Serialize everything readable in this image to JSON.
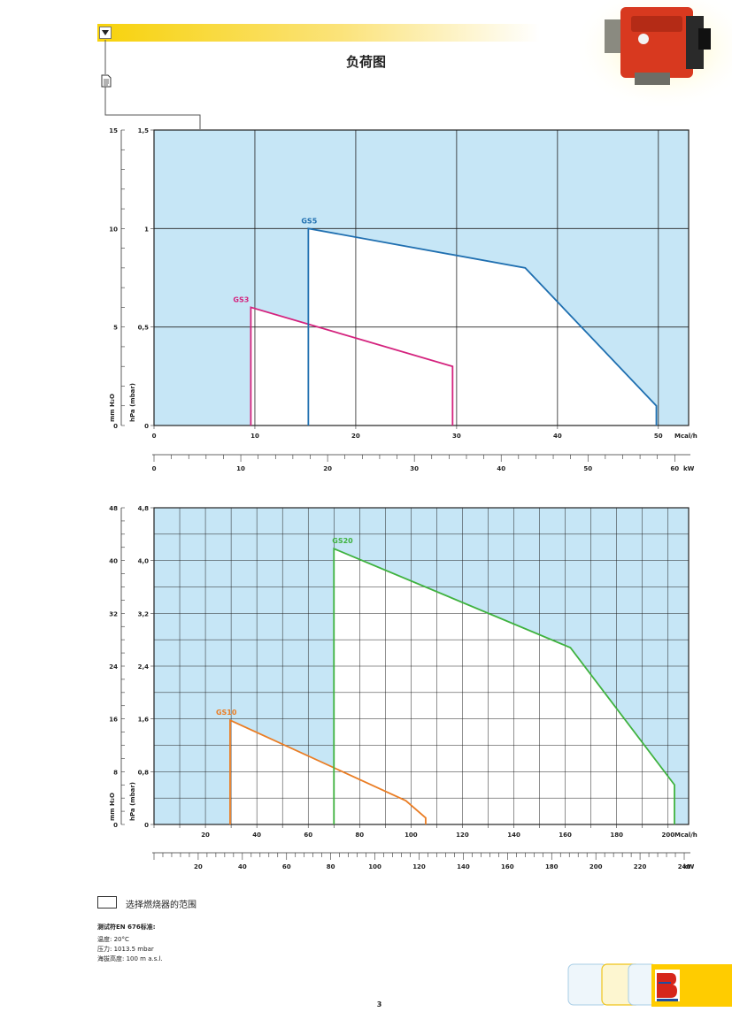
{
  "page": {
    "title": "负荷图",
    "page_number": "3",
    "legend_label": "选择燃烧器的范围",
    "notes_title": "测试符EN 676标准:",
    "notes": [
      "温度:  20°C",
      "压力:  1013.5 mbar",
      "海拔高度:  100 m a.s.l."
    ]
  },
  "colors": {
    "plot_background": "#c6e6f6",
    "gs3": "#d4237e",
    "gs5": "#1f6fb0",
    "gs10": "#ea7d24",
    "gs20": "#3fb23f",
    "banner": "#f7d20b"
  },
  "chart_data": [
    {
      "type": "line",
      "left_axis_label": "mm H₂O",
      "right_axis_label": "hPa (mbar)",
      "flow_unit": "Mcal/h",
      "power_unit": "kW",
      "mmH2O_ticks": [
        "15",
        "10",
        "5",
        "0"
      ],
      "mmH2O_ylim": [
        0,
        15
      ],
      "hPa_ticks": [
        "1,5",
        "1",
        "0,5",
        "0"
      ],
      "ylim": [
        0,
        1.5
      ],
      "x_ticks": [
        "0",
        "10",
        "20",
        "30",
        "40",
        "50"
      ],
      "xlim": [
        0,
        53
      ],
      "kW_ticks": [
        "0",
        "10",
        "20",
        "30",
        "40",
        "50",
        "60"
      ],
      "kW_xlim": [
        0,
        61.6
      ],
      "grid": true,
      "series": [
        {
          "name": "GS3",
          "color_key": "gs3",
          "x": [
            9.6,
            9.6,
            29.6,
            29.6
          ],
          "y": [
            0,
            0.6,
            0.3,
            0
          ]
        },
        {
          "name": "GS5",
          "color_key": "gs5",
          "x": [
            15.3,
            15.3,
            36.8,
            49.8,
            49.8
          ],
          "y": [
            0,
            1.0,
            0.8,
            0.1,
            0
          ]
        }
      ]
    },
    {
      "type": "line",
      "left_axis_label": "mm H₂O",
      "right_axis_label": "hPa (mbar)",
      "flow_unit": "Mcal/h",
      "power_unit": "kW",
      "mmH2O_ticks": [
        "48",
        "40",
        "32",
        "24",
        "16",
        "8",
        "0"
      ],
      "mmH2O_ylim": [
        0,
        48
      ],
      "hPa_ticks": [
        "4,8",
        "4,0",
        "3,2",
        "2,4",
        "1,6",
        "0,8",
        "0"
      ],
      "ylim": [
        0,
        4.8
      ],
      "x_ticks": [
        "20",
        "40",
        "60",
        "80",
        "100",
        "120",
        "140",
        "160",
        "180",
        "200"
      ],
      "xlim": [
        0,
        208
      ],
      "kW_ticks": [
        "20",
        "40",
        "60",
        "80",
        "100",
        "120",
        "140",
        "160",
        "180",
        "200",
        "220",
        "240"
      ],
      "kW_xlim": [
        0,
        242
      ],
      "grid": true,
      "series": [
        {
          "name": "GS10",
          "color_key": "gs10",
          "x": [
            29.6,
            29.6,
            98.0,
            105.7,
            105.7
          ],
          "y": [
            0,
            1.58,
            0.36,
            0.1,
            0
          ]
        },
        {
          "name": "GS20",
          "color_key": "gs20",
          "x": [
            70.0,
            70.0,
            162.0,
            202.5,
            202.5
          ],
          "y": [
            0,
            4.18,
            2.68,
            0.6,
            0
          ]
        }
      ]
    }
  ]
}
